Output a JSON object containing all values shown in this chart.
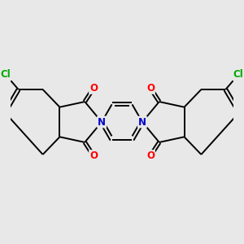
{
  "bg_color": "#e8e8e8",
  "bond_color": "#000000",
  "bond_width": 1.4,
  "N_color": "#0000cc",
  "O_color": "#ff0000",
  "Cl_color": "#00aa00",
  "font_size_atom": 8.5,
  "fig_width": 3.0,
  "fig_height": 3.0,
  "dpi": 100,
  "xlim": [
    -1.65,
    1.65
  ],
  "ylim": [
    -0.95,
    0.95
  ]
}
